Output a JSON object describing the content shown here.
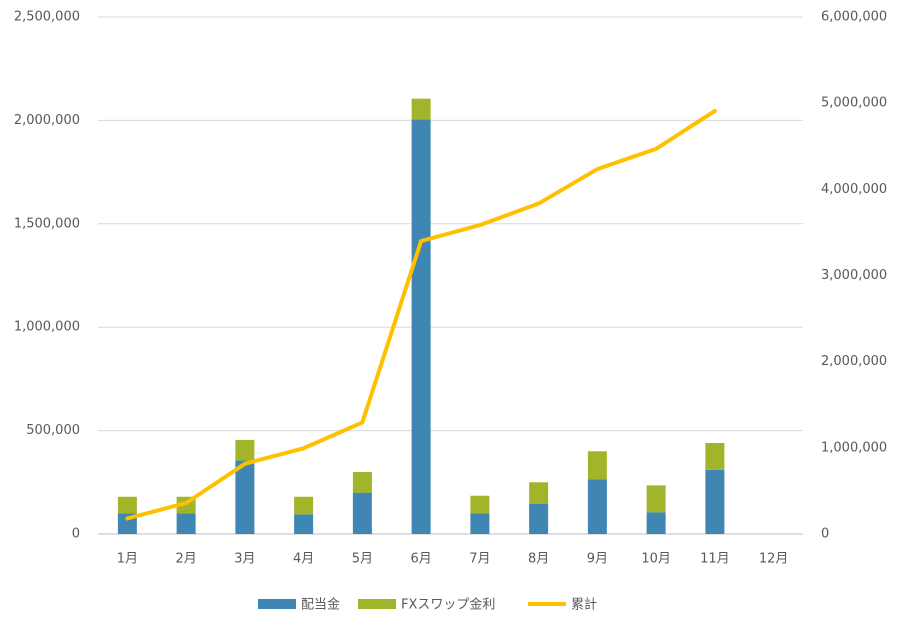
{
  "chart_data": {
    "type": "bar",
    "stacked": true,
    "categories": [
      "1月",
      "2月",
      "3月",
      "4月",
      "5月",
      "6月",
      "7月",
      "8月",
      "9月",
      "10月",
      "11月",
      "12月"
    ],
    "series": [
      {
        "name": "配当金",
        "type": "bar",
        "axis": "left",
        "color": "#3F87B2",
        "values": [
          100000,
          100000,
          355000,
          95000,
          200000,
          2005000,
          100000,
          145000,
          265000,
          105000,
          310000,
          null
        ]
      },
      {
        "name": "FXスワップ金利",
        "type": "bar",
        "axis": "left",
        "color": "#A2B52A",
        "values": [
          80000,
          80000,
          100000,
          85000,
          100000,
          100000,
          85000,
          105000,
          135000,
          130000,
          130000,
          null
        ]
      },
      {
        "name": "累計",
        "type": "line",
        "axis": "right",
        "color": "#FFC000",
        "values": [
          180000,
          360000,
          815000,
          995000,
          1295000,
          3400000,
          3585000,
          3835000,
          4235000,
          4470000,
          4910000,
          null
        ]
      }
    ],
    "y_left": {
      "min": 0,
      "max": 2500000,
      "ticks": [
        "0",
        "500,000",
        "1,000,000",
        "1,500,000",
        "2,000,000",
        "2,500,000"
      ]
    },
    "y_right": {
      "min": 0,
      "max": 6000000,
      "ticks": [
        "0",
        "1,000,000",
        "2,000,000",
        "3,000,000",
        "4,000,000",
        "5,000,000",
        "6,000,000"
      ]
    },
    "grid": true,
    "legend": "bottom"
  }
}
